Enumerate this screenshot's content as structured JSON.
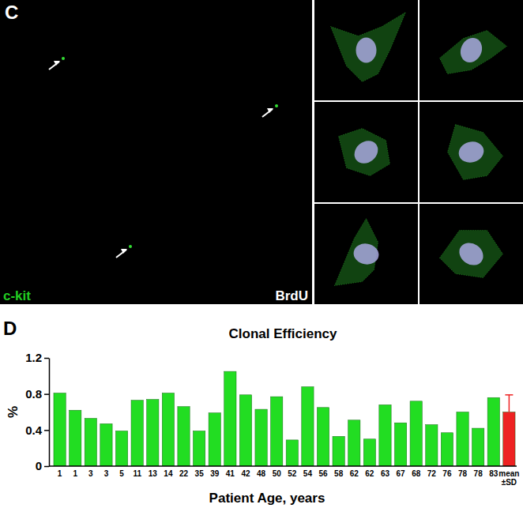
{
  "figure": {
    "panel_labels": [
      "C",
      "D"
    ],
    "stains": [
      {
        "text": "c-kit",
        "color": "#22cc22"
      },
      {
        "text": "BrdU",
        "color": "#ffffff"
      }
    ]
  },
  "chart_data": {
    "type": "bar",
    "title": "Clonal Efficiency",
    "x_label": "Patient Age, years",
    "y_label": "%",
    "categories": [
      "1",
      "1",
      "3",
      "3",
      "5",
      "11",
      "13",
      "14",
      "22",
      "35",
      "39",
      "41",
      "42",
      "48",
      "50",
      "52",
      "54",
      "56",
      "58",
      "62",
      "62",
      "63",
      "67",
      "68",
      "72",
      "76",
      "78",
      "78",
      "83",
      "mean ±SD"
    ],
    "values": [
      0.81,
      0.62,
      0.53,
      0.47,
      0.39,
      0.73,
      0.74,
      0.81,
      0.66,
      0.39,
      0.59,
      1.05,
      0.79,
      0.63,
      0.77,
      0.29,
      0.88,
      0.65,
      0.33,
      0.51,
      0.3,
      0.68,
      0.48,
      0.72,
      0.46,
      0.37,
      0.6,
      0.42,
      0.76,
      0.6
    ],
    "errors": [
      null,
      null,
      null,
      null,
      null,
      null,
      null,
      null,
      null,
      null,
      null,
      null,
      null,
      null,
      null,
      null,
      null,
      null,
      null,
      null,
      null,
      null,
      null,
      null,
      null,
      null,
      null,
      null,
      null,
      0.19
    ],
    "colors": [
      "#22dd22",
      "#22dd22",
      "#22dd22",
      "#22dd22",
      "#22dd22",
      "#22dd22",
      "#22dd22",
      "#22dd22",
      "#22dd22",
      "#22dd22",
      "#22dd22",
      "#22dd22",
      "#22dd22",
      "#22dd22",
      "#22dd22",
      "#22dd22",
      "#22dd22",
      "#22dd22",
      "#22dd22",
      "#22dd22",
      "#22dd22",
      "#22dd22",
      "#22dd22",
      "#22dd22",
      "#22dd22",
      "#22dd22",
      "#22dd22",
      "#22dd22",
      "#22dd22",
      "#ee2222"
    ],
    "ylim": [
      0,
      1.2
    ],
    "yticks": [
      0,
      0.4,
      0.8,
      1.2
    ],
    "grid": false
  }
}
